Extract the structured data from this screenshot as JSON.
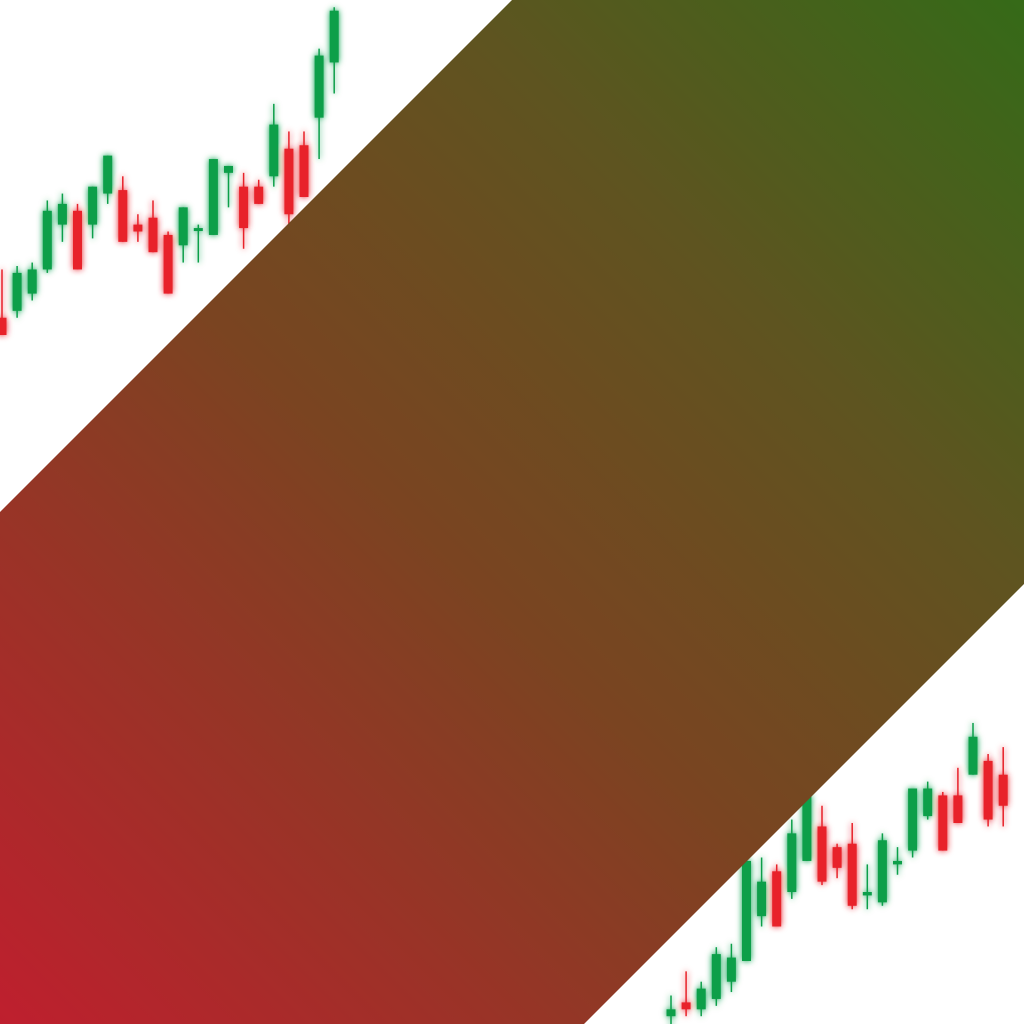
{
  "colors": {
    "background": "#ffffff",
    "bull": "#0a9f4a",
    "bear": "#e8202b",
    "band_start": "#bf1f2e",
    "band_mid": "#5e5420",
    "band_end": "#356a18"
  },
  "candles_top": [
    {
      "o": 212,
      "h": 226,
      "l": 207,
      "c": 207
    },
    {
      "o": 214,
      "h": 227,
      "l": 212,
      "c": 225
    },
    {
      "o": 219,
      "h": 228,
      "l": 217,
      "c": 226
    },
    {
      "o": 226,
      "h": 246,
      "l": 225,
      "c": 243
    },
    {
      "o": 239,
      "h": 248,
      "l": 234,
      "c": 245
    },
    {
      "o": 243,
      "h": 245,
      "l": 226,
      "c": 226
    },
    {
      "o": 239,
      "h": 250,
      "l": 235,
      "c": 250
    },
    {
      "o": 248,
      "h": 258,
      "l": 245,
      "c": 259
    },
    {
      "o": 249,
      "h": 253,
      "l": 234,
      "c": 234
    },
    {
      "o": 239,
      "h": 242,
      "l": 234,
      "c": 237
    },
    {
      "o": 241,
      "h": 246,
      "l": 231,
      "c": 231
    },
    {
      "o": 236,
      "h": 237,
      "l": 219,
      "c": 219
    },
    {
      "o": 233,
      "h": 244,
      "l": 228,
      "c": 244
    },
    {
      "o": 238,
      "h": 239,
      "l": 228,
      "c": 238
    },
    {
      "o": 236,
      "h": 258,
      "l": 236,
      "c": 258
    },
    {
      "o": 254,
      "h": 255,
      "l": 244,
      "c": 256
    },
    {
      "o": 250,
      "h": 254,
      "l": 232,
      "c": 238
    },
    {
      "o": 250,
      "h": 252,
      "l": 247,
      "c": 245
    },
    {
      "o": 253,
      "h": 274,
      "l": 250,
      "c": 268
    },
    {
      "o": 261,
      "h": 266,
      "l": 238,
      "c": 242
    },
    {
      "o": 262,
      "h": 266,
      "l": 256,
      "c": 247
    },
    {
      "o": 270,
      "h": 290,
      "l": 258,
      "c": 288
    },
    {
      "o": 286,
      "h": 302,
      "l": 277,
      "c": 301
    }
  ],
  "candles_bottom": [
    {
      "o": 40,
      "h": 46,
      "l": 36,
      "c": 42
    },
    {
      "o": 44,
      "h": 53,
      "l": 40,
      "c": 42
    },
    {
      "o": 42,
      "h": 50,
      "l": 40,
      "c": 48
    },
    {
      "o": 45,
      "h": 60,
      "l": 43,
      "c": 58
    },
    {
      "o": 50,
      "h": 61,
      "l": 47,
      "c": 57
    },
    {
      "o": 56,
      "h": 87,
      "l": 56,
      "c": 85
    },
    {
      "o": 69,
      "h": 86,
      "l": 66,
      "c": 79
    },
    {
      "o": 82,
      "h": 84,
      "l": 66,
      "c": 66
    },
    {
      "o": 76,
      "h": 97,
      "l": 74,
      "c": 93
    },
    {
      "o": 85,
      "h": 106,
      "l": 86,
      "c": 104
    },
    {
      "o": 95,
      "h": 101,
      "l": 78,
      "c": 79
    },
    {
      "o": 89,
      "h": 90,
      "l": 80,
      "c": 83
    },
    {
      "o": 90,
      "h": 96,
      "l": 71,
      "c": 72
    },
    {
      "o": 75,
      "h": 84,
      "l": 71,
      "c": 76
    },
    {
      "o": 73,
      "h": 93,
      "l": 72,
      "c": 91
    },
    {
      "o": 84,
      "h": 89,
      "l": 81,
      "c": 85
    },
    {
      "o": 88,
      "h": 102,
      "l": 86,
      "c": 106
    },
    {
      "o": 98,
      "h": 108,
      "l": 97,
      "c": 106
    },
    {
      "o": 104,
      "h": 105,
      "l": 94,
      "c": 88
    },
    {
      "o": 104,
      "h": 112,
      "l": 101,
      "c": 96
    },
    {
      "o": 110,
      "h": 125,
      "l": 110,
      "c": 121
    },
    {
      "o": 114,
      "h": 116,
      "l": 95,
      "c": 97
    },
    {
      "o": 110,
      "h": 118,
      "l": 95,
      "c": 101
    }
  ]
}
